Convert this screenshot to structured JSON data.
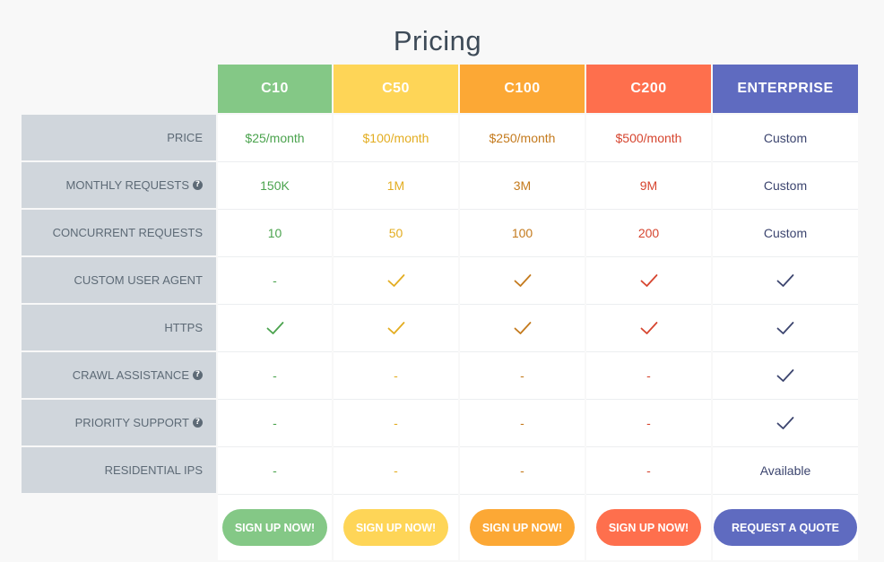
{
  "page": {
    "title": "Pricing"
  },
  "colors": {
    "c10": "#84c886",
    "c50": "#fed557",
    "c100": "#fca835",
    "c200": "#fe6f4d",
    "enterprise": "#5f6bc0",
    "c10_text": "#4ba34e",
    "c50_text": "#e3ad21",
    "c100_text": "#c47a1d",
    "c200_text": "#d6452f",
    "enterprise_text": "#3c456f"
  },
  "plans": [
    {
      "id": "c10",
      "name": "C10"
    },
    {
      "id": "c50",
      "name": "C50"
    },
    {
      "id": "c100",
      "name": "C100"
    },
    {
      "id": "c200",
      "name": "C200"
    },
    {
      "id": "enterprise",
      "name": "ENTERPRISE"
    }
  ],
  "features": [
    {
      "label": "PRICE",
      "help": false,
      "values": [
        "$25/month",
        "$100/month",
        "$250/month",
        "$500/month",
        "Custom"
      ]
    },
    {
      "label": "MONTHLY REQUESTS",
      "help": true,
      "values": [
        "150K",
        "1M",
        "3M",
        "9M",
        "Custom"
      ]
    },
    {
      "label": "CONCURRENT REQUESTS",
      "help": false,
      "values": [
        "10",
        "50",
        "100",
        "200",
        "Custom"
      ]
    },
    {
      "label": "CUSTOM USER AGENT",
      "help": false,
      "values": [
        "-",
        "check",
        "check",
        "check",
        "check"
      ]
    },
    {
      "label": "HTTPS",
      "help": false,
      "values": [
        "check",
        "check",
        "check",
        "check",
        "check"
      ]
    },
    {
      "label": "CRAWL ASSISTANCE",
      "help": true,
      "values": [
        "-",
        "-",
        "-",
        "-",
        "check"
      ]
    },
    {
      "label": "PRIORITY SUPPORT",
      "help": true,
      "values": [
        "-",
        "-",
        "-",
        "-",
        "check"
      ]
    },
    {
      "label": "RESIDENTIAL IPS",
      "help": false,
      "values": [
        "-",
        "-",
        "-",
        "-",
        "Available"
      ]
    }
  ],
  "buttons": [
    "SIGN UP NOW!",
    "SIGN UP NOW!",
    "SIGN UP NOW!",
    "SIGN UP NOW!",
    "REQUEST A QUOTE"
  ],
  "icons": {
    "check": "check-icon",
    "help": "help-icon"
  },
  "help_glyph": "?"
}
